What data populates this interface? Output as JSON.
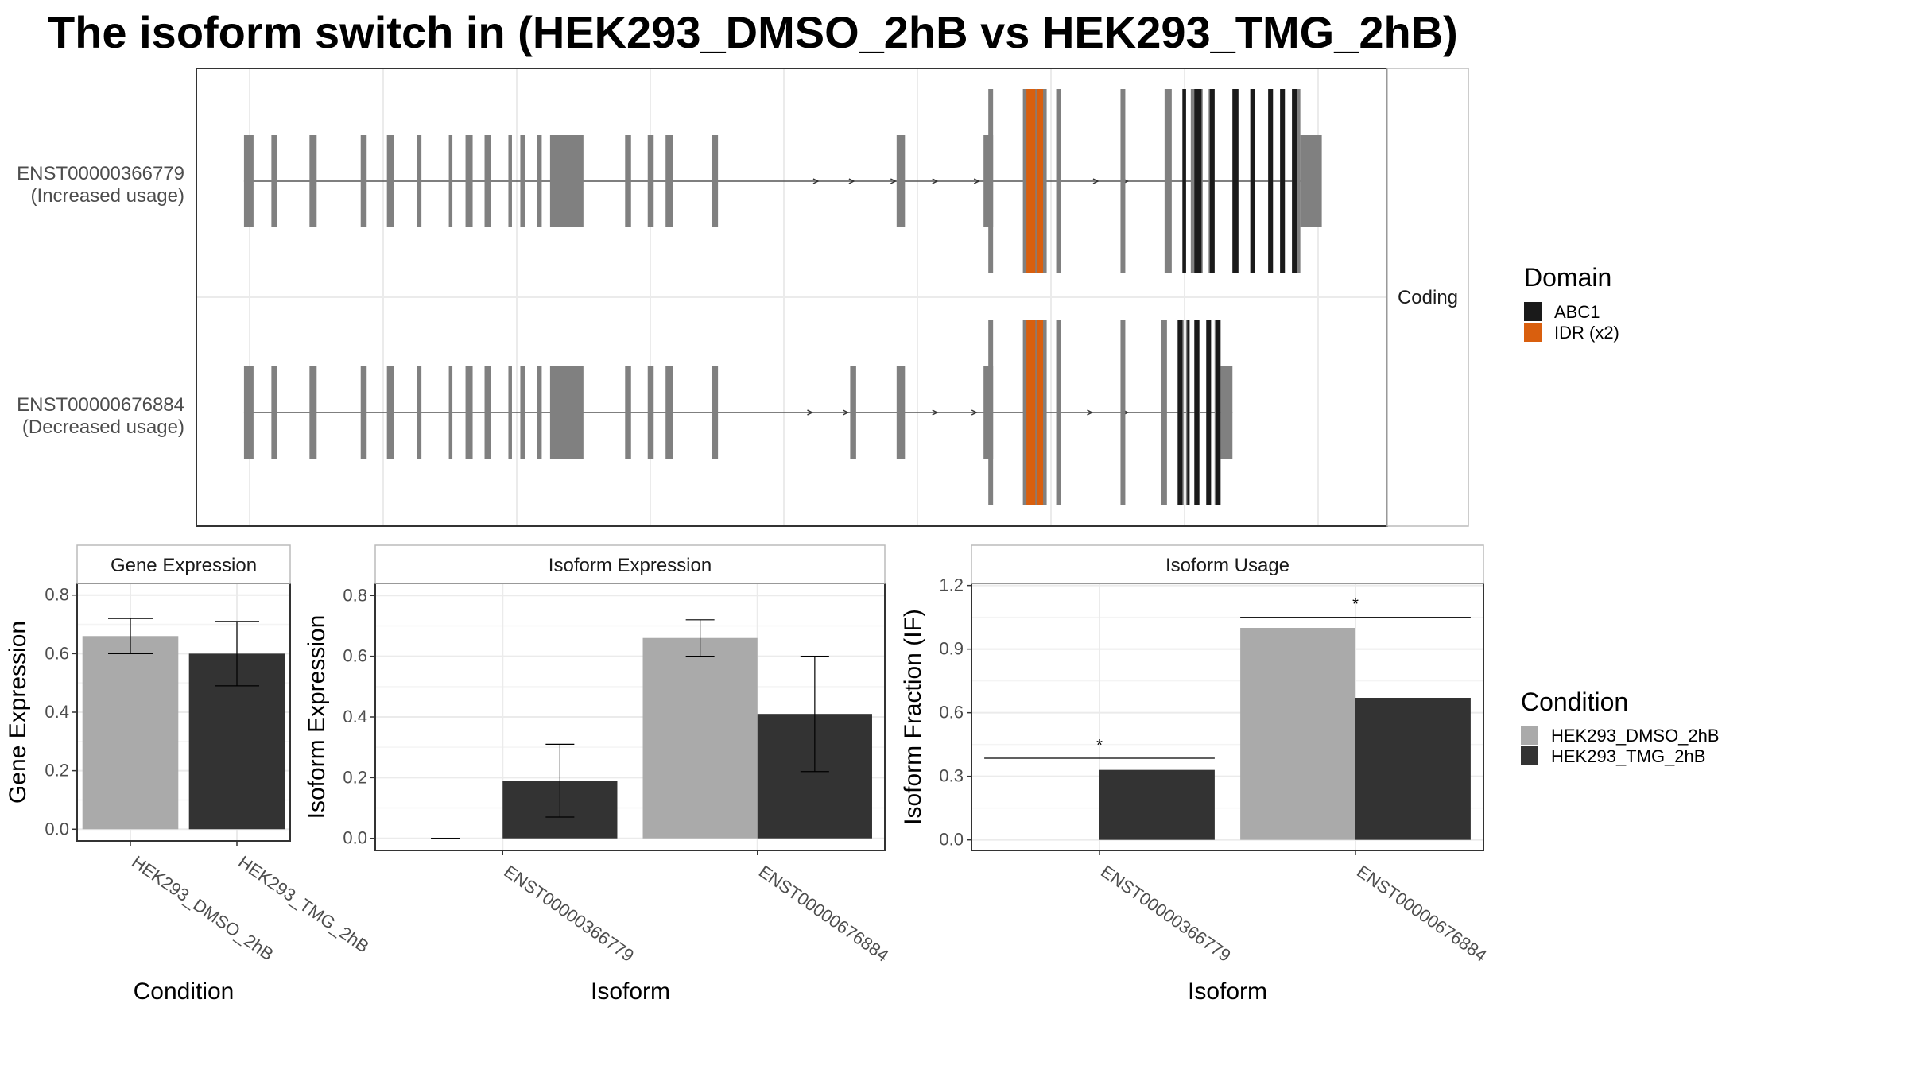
{
  "title": "The isoform switch in  (HEK293_DMSO_2hB vs HEK293_TMG_2hB)",
  "colors": {
    "exon": "#808080",
    "abc1": "#1a1a1a",
    "idr": "#d95f0e",
    "dmso": "#aaaaaa",
    "tmg": "#333333",
    "grid": "#ebebeb",
    "panel_border": "#333333"
  },
  "transcript_panel": {
    "strip_label": "Coding",
    "transcripts": [
      {
        "id": "ENST00000366779",
        "label": "(Increased usage)",
        "intron_start": 0.04,
        "intron_end": 0.935,
        "direction_marks": [
          0.52,
          0.55,
          0.585,
          0.62,
          0.655,
          0.755,
          0.78
        ],
        "exons": [
          {
            "s": 0.04,
            "e": 0.048,
            "h": "m"
          },
          {
            "s": 0.063,
            "e": 0.068,
            "h": "m"
          },
          {
            "s": 0.095,
            "e": 0.101,
            "h": "m"
          },
          {
            "s": 0.138,
            "e": 0.143,
            "h": "m"
          },
          {
            "s": 0.16,
            "e": 0.166,
            "h": "m"
          },
          {
            "s": 0.185,
            "e": 0.189,
            "h": "m"
          },
          {
            "s": 0.212,
            "e": 0.215,
            "h": "m"
          },
          {
            "s": 0.226,
            "e": 0.232,
            "h": "m"
          },
          {
            "s": 0.242,
            "e": 0.247,
            "h": "m"
          },
          {
            "s": 0.262,
            "e": 0.265,
            "h": "m"
          },
          {
            "s": 0.272,
            "e": 0.276,
            "h": "m"
          },
          {
            "s": 0.286,
            "e": 0.29,
            "h": "m"
          },
          {
            "s": 0.297,
            "e": 0.325,
            "h": "m"
          },
          {
            "s": 0.36,
            "e": 0.365,
            "h": "m"
          },
          {
            "s": 0.379,
            "e": 0.384,
            "h": "m"
          },
          {
            "s": 0.394,
            "e": 0.4,
            "h": "m"
          },
          {
            "s": 0.433,
            "e": 0.438,
            "h": "m"
          },
          {
            "s": 0.588,
            "e": 0.595,
            "h": "m"
          },
          {
            "s": 0.661,
            "e": 0.669,
            "h": "m"
          },
          {
            "s": 0.665,
            "e": 0.669,
            "h": "l"
          },
          {
            "s": 0.694,
            "e": 0.714,
            "h": "l"
          },
          {
            "s": 0.722,
            "e": 0.726,
            "h": "l"
          },
          {
            "s": 0.776,
            "e": 0.78,
            "h": "l"
          },
          {
            "s": 0.813,
            "e": 0.819,
            "h": "l"
          },
          {
            "s": 0.828,
            "e": 0.831,
            "h": "l"
          },
          {
            "s": 0.835,
            "e": 0.845,
            "h": "l"
          },
          {
            "s": 0.85,
            "e": 0.855,
            "h": "l"
          },
          {
            "s": 0.87,
            "e": 0.875,
            "h": "l"
          },
          {
            "s": 0.885,
            "e": 0.889,
            "h": "l"
          },
          {
            "s": 0.9,
            "e": 0.904,
            "h": "l"
          },
          {
            "s": 0.91,
            "e": 0.914,
            "h": "l"
          },
          {
            "s": 0.92,
            "e": 0.927,
            "h": "l"
          },
          {
            "s": 0.927,
            "e": 0.945,
            "h": "m"
          }
        ],
        "domains": [
          {
            "type": "idr",
            "s": 0.697,
            "e": 0.7045,
            "h": "l"
          },
          {
            "type": "idr",
            "s": 0.7055,
            "e": 0.711,
            "h": "l"
          },
          {
            "type": "abc1",
            "s": 0.828,
            "e": 0.831,
            "h": "l"
          },
          {
            "type": "abc1",
            "s": 0.838,
            "e": 0.844,
            "h": "l"
          },
          {
            "type": "abc1",
            "s": 0.851,
            "e": 0.855,
            "h": "l"
          },
          {
            "type": "abc1",
            "s": 0.87,
            "e": 0.875,
            "h": "l"
          },
          {
            "type": "abc1",
            "s": 0.885,
            "e": 0.889,
            "h": "l"
          },
          {
            "type": "abc1",
            "s": 0.9,
            "e": 0.904,
            "h": "l"
          },
          {
            "type": "abc1",
            "s": 0.91,
            "e": 0.914,
            "h": "l"
          },
          {
            "type": "abc1",
            "s": 0.92,
            "e": 0.924,
            "h": "l"
          }
        ]
      },
      {
        "id": "ENST00000676884",
        "label": "(Decreased usage)",
        "intron_start": 0.04,
        "intron_end": 0.87,
        "direction_marks": [
          0.515,
          0.545,
          0.62,
          0.653,
          0.75,
          0.78
        ],
        "exons": [
          {
            "s": 0.04,
            "e": 0.048,
            "h": "m"
          },
          {
            "s": 0.063,
            "e": 0.068,
            "h": "m"
          },
          {
            "s": 0.095,
            "e": 0.101,
            "h": "m"
          },
          {
            "s": 0.138,
            "e": 0.143,
            "h": "m"
          },
          {
            "s": 0.16,
            "e": 0.166,
            "h": "m"
          },
          {
            "s": 0.185,
            "e": 0.189,
            "h": "m"
          },
          {
            "s": 0.212,
            "e": 0.215,
            "h": "m"
          },
          {
            "s": 0.226,
            "e": 0.232,
            "h": "m"
          },
          {
            "s": 0.242,
            "e": 0.247,
            "h": "m"
          },
          {
            "s": 0.262,
            "e": 0.265,
            "h": "m"
          },
          {
            "s": 0.272,
            "e": 0.276,
            "h": "m"
          },
          {
            "s": 0.286,
            "e": 0.29,
            "h": "m"
          },
          {
            "s": 0.297,
            "e": 0.325,
            "h": "m"
          },
          {
            "s": 0.36,
            "e": 0.365,
            "h": "m"
          },
          {
            "s": 0.379,
            "e": 0.384,
            "h": "m"
          },
          {
            "s": 0.394,
            "e": 0.4,
            "h": "m"
          },
          {
            "s": 0.433,
            "e": 0.438,
            "h": "m"
          },
          {
            "s": 0.549,
            "e": 0.554,
            "h": "m"
          },
          {
            "s": 0.588,
            "e": 0.595,
            "h": "m"
          },
          {
            "s": 0.661,
            "e": 0.669,
            "h": "m"
          },
          {
            "s": 0.665,
            "e": 0.669,
            "h": "l"
          },
          {
            "s": 0.694,
            "e": 0.714,
            "h": "l"
          },
          {
            "s": 0.722,
            "e": 0.726,
            "h": "l"
          },
          {
            "s": 0.776,
            "e": 0.78,
            "h": "l"
          },
          {
            "s": 0.81,
            "e": 0.815,
            "h": "l"
          },
          {
            "s": 0.824,
            "e": 0.829,
            "h": "l"
          },
          {
            "s": 0.831,
            "e": 0.834,
            "h": "l"
          },
          {
            "s": 0.838,
            "e": 0.843,
            "h": "l"
          },
          {
            "s": 0.848,
            "e": 0.852,
            "h": "l"
          },
          {
            "s": 0.855,
            "e": 0.86,
            "h": "l"
          },
          {
            "s": 0.86,
            "e": 0.87,
            "h": "m"
          }
        ],
        "domains": [
          {
            "type": "idr",
            "s": 0.697,
            "e": 0.7045,
            "h": "l"
          },
          {
            "type": "idr",
            "s": 0.7055,
            "e": 0.711,
            "h": "l"
          },
          {
            "type": "abc1",
            "s": 0.824,
            "e": 0.828,
            "h": "l"
          },
          {
            "type": "abc1",
            "s": 0.832,
            "e": 0.834,
            "h": "l"
          },
          {
            "type": "abc1",
            "s": 0.838,
            "e": 0.842,
            "h": "l"
          },
          {
            "type": "abc1",
            "s": 0.848,
            "e": 0.852,
            "h": "l"
          },
          {
            "type": "abc1",
            "s": 0.856,
            "e": 0.86,
            "h": "l"
          }
        ]
      }
    ]
  },
  "legend_domain": {
    "title": "Domain",
    "items": [
      {
        "label": "ABC1",
        "color_key": "abc1"
      },
      {
        "label": "IDR (x2)",
        "color_key": "idr"
      }
    ]
  },
  "legend_condition": {
    "title": "Condition",
    "items": [
      {
        "label": "HEK293_DMSO_2hB",
        "color_key": "dmso"
      },
      {
        "label": "HEK293_TMG_2hB",
        "color_key": "tmg"
      }
    ]
  },
  "chart_data": [
    {
      "type": "bar",
      "title": "Gene Expression",
      "xlabel": "Condition",
      "ylabel": "Gene Expression",
      "ylim": [
        -0.04,
        0.84
      ],
      "yticks": [
        0.0,
        0.2,
        0.4,
        0.6,
        0.8
      ],
      "ytick_labels": [
        "0.0",
        "0.2",
        "0.4",
        "0.6",
        "0.8"
      ],
      "categories": [
        "HEK293_DMSO_2hB",
        "HEK293_TMG_2hB"
      ],
      "series": [
        {
          "name": "HEK293_DMSO_2hB",
          "values": [
            0.66,
            null
          ],
          "err_low": [
            0.6,
            null
          ],
          "err_high": [
            0.72,
            null
          ]
        },
        {
          "name": "HEK293_TMG_2hB",
          "values": [
            null,
            0.6
          ],
          "err_low": [
            null,
            0.49
          ],
          "err_high": [
            null,
            0.71
          ]
        }
      ]
    },
    {
      "type": "bar",
      "title": "Isoform Expression",
      "xlabel": "Isoform",
      "ylabel": "Isoform Expression",
      "ylim": [
        -0.04,
        0.84
      ],
      "yticks": [
        0.0,
        0.2,
        0.4,
        0.6,
        0.8
      ],
      "ytick_labels": [
        "0.0",
        "0.2",
        "0.4",
        "0.6",
        "0.8"
      ],
      "categories": [
        "ENST00000366779",
        "ENST00000676884"
      ],
      "series": [
        {
          "name": "HEK293_DMSO_2hB",
          "values": [
            0.0,
            0.66
          ],
          "err_low": [
            0.0,
            0.6
          ],
          "err_high": [
            0.0,
            0.72
          ]
        },
        {
          "name": "HEK293_TMG_2hB",
          "values": [
            0.19,
            0.41
          ],
          "err_low": [
            0.07,
            0.22
          ],
          "err_high": [
            0.31,
            0.6
          ]
        }
      ]
    },
    {
      "type": "bar",
      "title": "Isoform Usage",
      "xlabel": "Isoform",
      "ylabel": "Isoform Fraction (IF)",
      "ylim": [
        -0.05,
        1.21
      ],
      "yticks": [
        0.0,
        0.3,
        0.6,
        0.9,
        1.2
      ],
      "ytick_labels": [
        "0.0",
        "0.3",
        "0.6",
        "0.9",
        "1.2"
      ],
      "categories": [
        "ENST00000366779",
        "ENST00000676884"
      ],
      "series": [
        {
          "name": "HEK293_DMSO_2hB",
          "values": [
            0.0,
            1.0
          ]
        },
        {
          "name": "HEK293_TMG_2hB",
          "values": [
            0.33,
            0.67
          ]
        }
      ],
      "annotations": [
        {
          "category": 0,
          "y": 0.385,
          "text": "*"
        },
        {
          "category": 1,
          "y": 1.05,
          "text": "*"
        }
      ]
    }
  ]
}
